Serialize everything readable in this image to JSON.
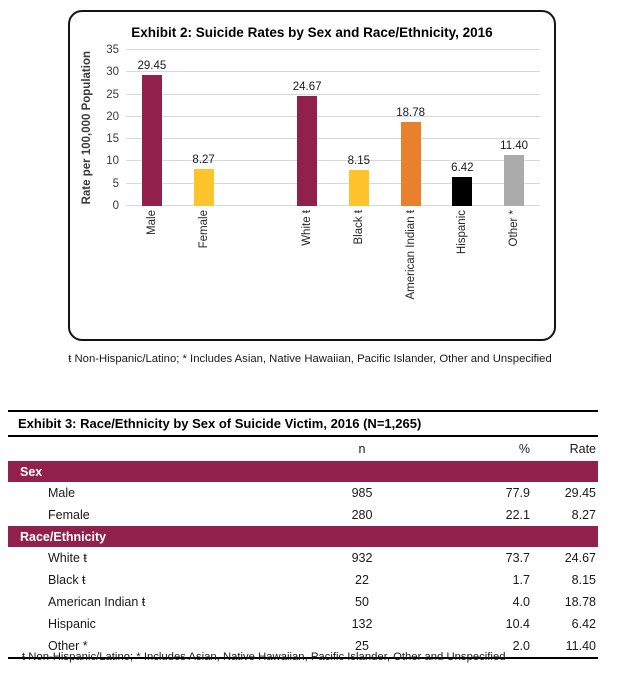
{
  "colors": {
    "maroon": "#92204C",
    "yellow": "#FFC32B",
    "orange": "#E8802D",
    "black_bar": "#000000",
    "gray": "#ABABAB",
    "gridline": "#D9D9D9",
    "band_text": "#FFFFFF"
  },
  "chart": {
    "title": "Exhibit 2: Suicide Rates by Sex and Race/Ethnicity, 2016",
    "ylabel": "Rate per 100,000 Population",
    "footnote": "ŧ Non-Hispanic/Latino; * Includes Asian, Native Hawaiian, Pacific Islander, Other and Unspecified"
  },
  "chart_data": {
    "type": "bar",
    "title": "Exhibit 2: Suicide Rates by Sex and Race/Ethnicity, 2016",
    "xlabel": "",
    "ylabel": "Rate per 100,000 Population",
    "ylim": [
      0,
      35
    ],
    "yticks": [
      0,
      5,
      10,
      15,
      20,
      25,
      30,
      35
    ],
    "grid": true,
    "legend": "none",
    "categories": [
      "Male",
      "Female",
      "White ŧ",
      "Black ŧ",
      "American Indian ŧ",
      "Hispanic",
      "Other *"
    ],
    "values": [
      29.45,
      8.27,
      24.67,
      8.15,
      18.78,
      6.42,
      11.4
    ],
    "value_labels": [
      "29.45",
      "8.27",
      "24.67",
      "8.15",
      "18.78",
      "6.42",
      "11.40"
    ],
    "bar_colors": [
      "#92204C",
      "#FFC32B",
      "#92204C",
      "#FFC32B",
      "#E8802D",
      "#000000",
      "#ABABAB"
    ],
    "gap_after_index": 1
  },
  "table": {
    "title": "Exhibit 3: Race/Ethnicity by Sex of Suicide Victim, 2016 (N=1,265)",
    "columns": {
      "n": "n",
      "pct": "%",
      "rate": "Rate"
    },
    "sections": [
      {
        "header": "Sex",
        "rows": [
          {
            "label": "Male",
            "n": "985",
            "pct": "77.9",
            "rate": "29.45"
          },
          {
            "label": "Female",
            "n": "280",
            "pct": "22.1",
            "rate": "8.27"
          }
        ]
      },
      {
        "header": "Race/Ethnicity",
        "rows": [
          {
            "label": "White ŧ",
            "n": "932",
            "pct": "73.7",
            "rate": "24.67"
          },
          {
            "label": "Black ŧ",
            "n": "22",
            "pct": "1.7",
            "rate": "8.15"
          },
          {
            "label": "American Indian ŧ",
            "n": "50",
            "pct": "4.0",
            "rate": "18.78"
          },
          {
            "label": "Hispanic",
            "n": "132",
            "pct": "10.4",
            "rate": "6.42"
          },
          {
            "label": "Other *",
            "n": "25",
            "pct": "2.0",
            "rate": "11.40"
          }
        ]
      }
    ],
    "footnote": "ŧ Non-Hispanic/Latino; * Includes Asian, Native Hawaiian, Pacific Islander, Other and Unspecified"
  }
}
